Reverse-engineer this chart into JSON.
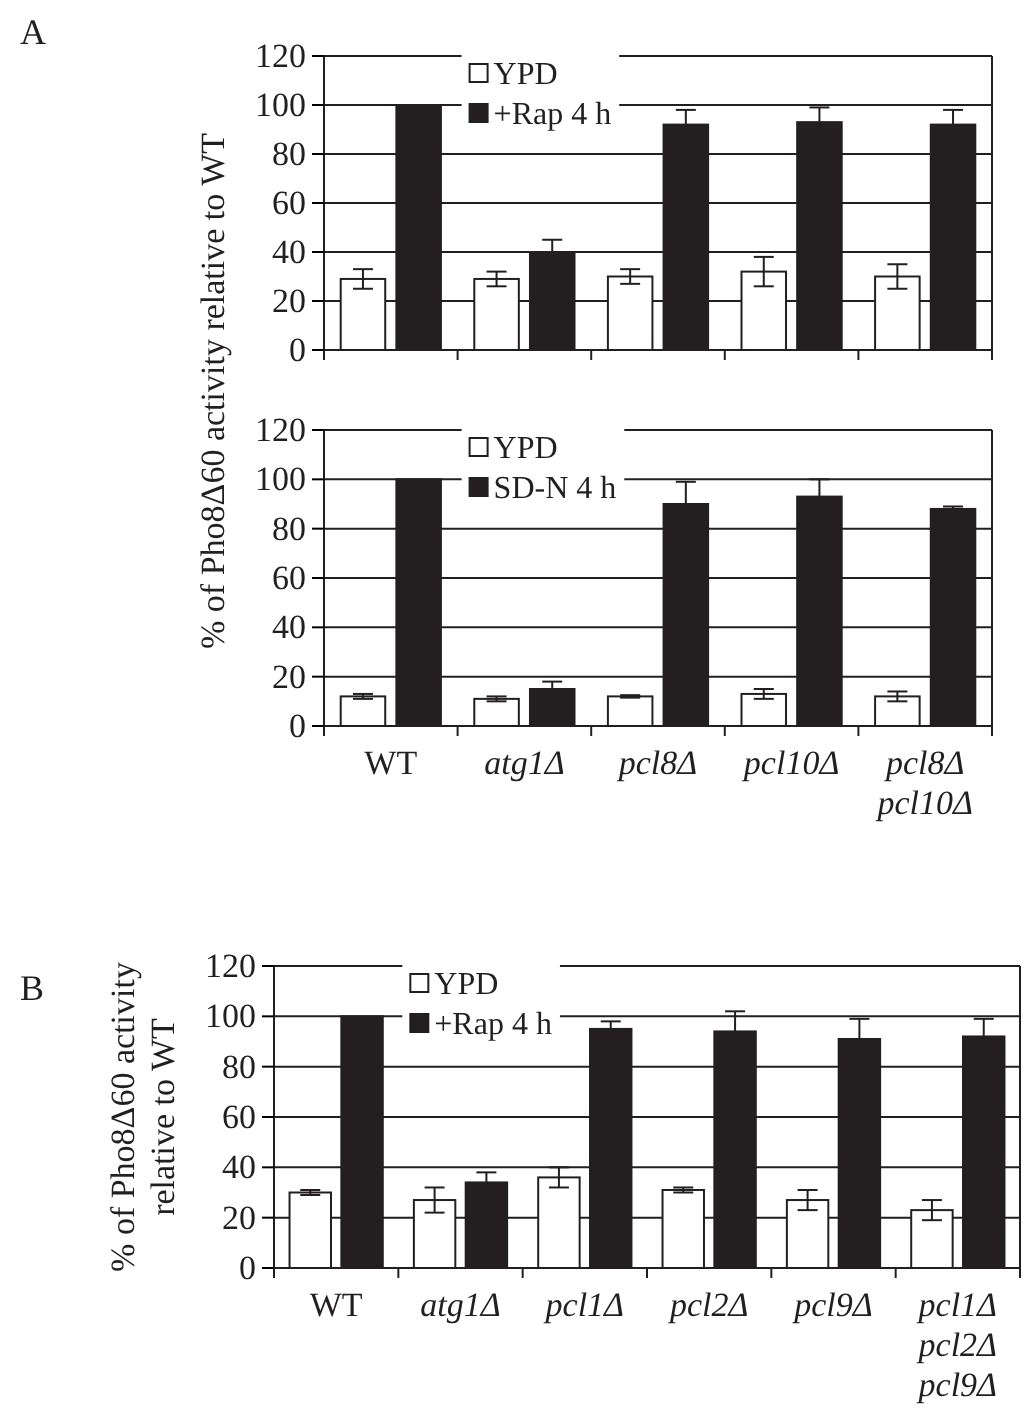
{
  "chart_data": [
    {
      "type": "bar",
      "ylabel": "% of Pho8Δ60 activity relative to WT",
      "annotations": [
        "A"
      ],
      "categories": [
        null,
        null,
        null,
        null,
        null
      ],
      "ylim": [
        0,
        120
      ],
      "yticks": [
        0,
        20,
        40,
        60,
        80,
        100,
        120
      ],
      "grid": "y",
      "legend": "top left",
      "tick_labels": "y",
      "series": [
        {
          "name": "YPD",
          "color": "#ffffff",
          "values": [
            29,
            29,
            30,
            32,
            30
          ],
          "errors": [
            4,
            3,
            3,
            6,
            5
          ]
        },
        {
          "name": "+Rap 4 h",
          "color": "#231f20",
          "values": [
            100,
            40,
            92,
            93,
            92
          ],
          "errors": [
            null,
            5,
            6,
            6,
            6
          ]
        }
      ]
    },
    {
      "type": "bar",
      "categories": [
        "WT",
        "atg1Δ",
        "pcl8Δ",
        "pcl10Δ",
        "pcl8Δ pcl10Δ"
      ],
      "ylim": [
        0,
        120
      ],
      "yticks": [
        0,
        20,
        40,
        60,
        80,
        100,
        120
      ],
      "grid": "y",
      "legend": "top left",
      "series": [
        {
          "name": "YPD",
          "color": "#ffffff",
          "values": [
            12,
            11,
            12,
            13,
            12
          ],
          "errors": [
            1,
            1,
            0.5,
            2,
            2
          ]
        },
        {
          "name": "SD-N 4 h",
          "color": "#231f20",
          "values": [
            100,
            15,
            90,
            93,
            88
          ],
          "errors": [
            null,
            3,
            9,
            7,
            1
          ]
        }
      ]
    },
    {
      "type": "bar",
      "ylabel": "% of Pho8Δ60 activity relative to WT",
      "annotations": [
        "B"
      ],
      "categories": [
        "WT",
        "atg1Δ",
        "pcl1Δ",
        "pcl2Δ",
        "pcl9Δ",
        "pcl1Δ pcl2Δ pcl9Δ"
      ],
      "ylim": [
        0,
        120
      ],
      "yticks": [
        0,
        20,
        40,
        60,
        80,
        100,
        120
      ],
      "grid": "y",
      "legend": "top left",
      "series": [
        {
          "name": "YPD",
          "color": "#ffffff",
          "values": [
            30,
            27,
            36,
            31,
            27,
            23
          ],
          "errors": [
            1,
            5,
            4,
            1,
            4,
            4
          ]
        },
        {
          "name": "+Rap 4 h",
          "color": "#231f20",
          "values": [
            100,
            34,
            95,
            94,
            91,
            92
          ],
          "errors": [
            null,
            4,
            3,
            8,
            8,
            7
          ]
        }
      ]
    }
  ]
}
